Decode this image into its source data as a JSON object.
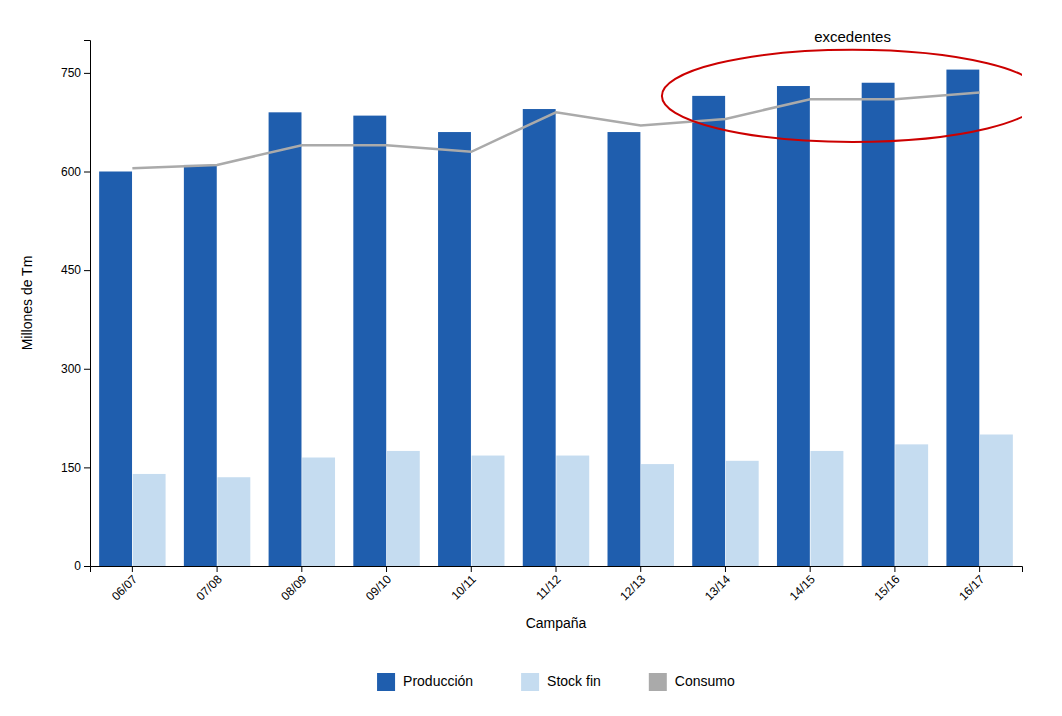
{
  "chart_data": {
    "type": "bar",
    "categories": [
      "06/07",
      "07/08",
      "08/09",
      "09/10",
      "10/11",
      "11/12",
      "12/13",
      "13/14",
      "14/15",
      "15/16",
      "16/17"
    ],
    "series": [
      {
        "name": "Producción",
        "color": "#1F5EAE",
        "values": [
          600,
          610,
          690,
          685,
          660,
          695,
          660,
          715,
          730,
          735,
          755
        ]
      },
      {
        "name": "Stock fin",
        "color": "#C5DCF0",
        "values": [
          140,
          135,
          165,
          175,
          168,
          168,
          155,
          160,
          175,
          185,
          200
        ]
      },
      {
        "name": "Consumo",
        "type": "line",
        "color": "#AAAAAA",
        "values": [
          605,
          610,
          640,
          640,
          630,
          690,
          670,
          680,
          710,
          710,
          720
        ]
      }
    ],
    "xlabel": "Campaña",
    "ylabel": "Millones de Tm",
    "ylim": [
      0,
      800
    ],
    "yticks": [
      0,
      150,
      300,
      450,
      600,
      750
    ],
    "grid": false,
    "legend": "bottom",
    "annotations": [
      {
        "text": "excedentes",
        "x": 8.5,
        "y": 793,
        "ellipse": {
          "x": 8.5,
          "y": 715,
          "width": 4.5,
          "height": 140,
          "color": "#CC0000"
        }
      }
    ]
  }
}
